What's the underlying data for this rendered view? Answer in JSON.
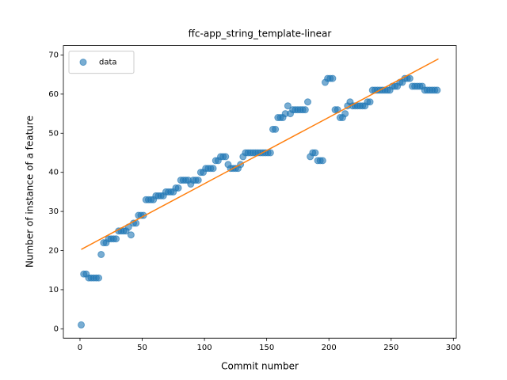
{
  "chart_data": {
    "type": "scatter",
    "title": "ffc-app_string_template-linear",
    "x_label": "Commit number",
    "y_label": "Number of instance of a feature",
    "xlim": [
      -13.35,
      302.35
    ],
    "ylim": [
      -2.4,
      72.4
    ],
    "xticks": [
      0,
      50,
      100,
      150,
      200,
      250,
      300
    ],
    "yticks": [
      0,
      10,
      20,
      30,
      40,
      50,
      60,
      70
    ],
    "legend": "upper left",
    "series": [
      {
        "name": "data",
        "color": "#1f77b4",
        "x": [
          1,
          3,
          5,
          7,
          9,
          11,
          13,
          15,
          17,
          19,
          21,
          23,
          25,
          27,
          29,
          31,
          33,
          35,
          37,
          39,
          41,
          43,
          45,
          47,
          49,
          51,
          53,
          55,
          57,
          59,
          61,
          63,
          65,
          67,
          69,
          71,
          73,
          75,
          77,
          79,
          81,
          83,
          85,
          87,
          89,
          91,
          93,
          95,
          97,
          99,
          101,
          103,
          105,
          107,
          109,
          111,
          113,
          115,
          117,
          119,
          121,
          123,
          125,
          127,
          129,
          131,
          133,
          135,
          137,
          139,
          141,
          143,
          145,
          147,
          149,
          151,
          153,
          155,
          157,
          159,
          161,
          163,
          165,
          167,
          169,
          171,
          173,
          175,
          177,
          179,
          181,
          183,
          185,
          187,
          189,
          191,
          193,
          195,
          197,
          199,
          201,
          203,
          205,
          207,
          209,
          211,
          213,
          215,
          217,
          219,
          221,
          223,
          225,
          227,
          229,
          231,
          233,
          235,
          237,
          239,
          241,
          243,
          245,
          247,
          249,
          251,
          253,
          255,
          257,
          259,
          261,
          263,
          265,
          267,
          269,
          271,
          273,
          275,
          277,
          279,
          281,
          283,
          285,
          287
        ],
        "values": [
          1,
          14,
          14,
          13,
          13,
          13,
          13,
          13,
          19,
          22,
          22,
          23,
          23,
          23,
          23,
          25,
          25,
          25,
          25,
          26,
          24,
          27,
          27,
          29,
          29,
          29,
          33,
          33,
          33,
          33,
          34,
          34,
          34,
          34,
          35,
          35,
          35,
          35,
          36,
          36,
          38,
          38,
          38,
          38,
          37,
          38,
          38,
          38,
          40,
          40,
          41,
          41,
          41,
          41,
          43,
          43,
          44,
          44,
          44,
          42,
          41,
          41,
          41,
          41,
          42,
          44,
          45,
          45,
          45,
          45,
          45,
          45,
          45,
          45,
          45,
          45,
          45,
          51,
          51,
          54,
          54,
          54,
          55,
          57,
          55,
          56,
          56,
          56,
          56,
          56,
          56,
          58,
          44,
          45,
          45,
          43,
          43,
          43,
          63,
          64,
          64,
          64,
          56,
          56,
          54,
          54,
          55,
          57,
          58,
          57,
          57,
          57,
          57,
          57,
          57,
          58,
          58,
          61,
          61,
          61,
          61,
          61,
          61,
          61,
          61,
          62,
          62,
          62,
          63,
          63,
          64,
          64,
          64,
          62,
          62,
          62,
          62,
          62,
          61,
          61,
          61,
          61,
          61,
          61
        ]
      }
    ],
    "fit_line": {
      "color": "#ff7f0e",
      "x": [
        1,
        288
      ],
      "values": [
        20.3,
        69
      ]
    }
  }
}
